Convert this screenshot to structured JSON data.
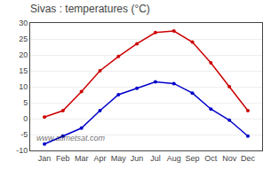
{
  "chart_data": {
    "type": "line",
    "title": "Sivas : temperatures (°C)",
    "categories": [
      "Jan",
      "Feb",
      "Mar",
      "Apr",
      "May",
      "Jun",
      "Jul",
      "Aug",
      "Sep",
      "Oct",
      "Nov",
      "Dec"
    ],
    "series": [
      {
        "color": "#cc0000",
        "values": [
          0.5,
          2.5,
          8.5,
          15,
          19.5,
          23.5,
          27,
          27.5,
          24,
          17.5,
          10,
          2.5
        ]
      },
      {
        "color": "#0000cc",
        "values": [
          -8,
          -5.5,
          -3,
          2.5,
          7.5,
          9.5,
          11.5,
          11,
          8,
          3,
          -0.5,
          -5.5
        ]
      }
    ],
    "ylim": [
      -10,
      30
    ],
    "yticks": [
      -10,
      -5,
      0,
      5,
      10,
      15,
      20,
      25,
      30
    ],
    "grid": true,
    "marker": "circle",
    "annotations": [
      "www.allmetsat.com"
    ]
  }
}
